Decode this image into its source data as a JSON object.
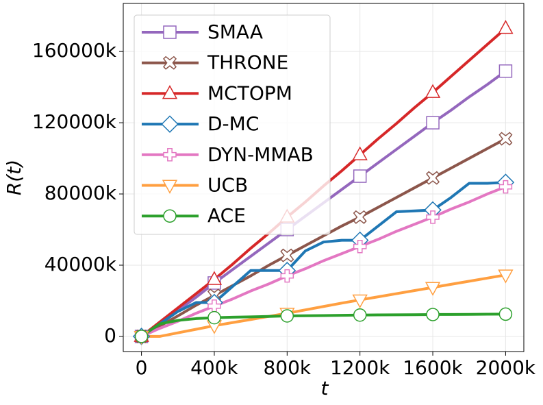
{
  "chart_data": {
    "type": "line",
    "xlabel": "t",
    "ylabel": "R(t)",
    "x": [
      0,
      100000,
      200000,
      300000,
      400000,
      500000,
      600000,
      700000,
      800000,
      900000,
      1000000,
      1100000,
      1200000,
      1300000,
      1400000,
      1500000,
      1600000,
      1700000,
      1800000,
      1900000,
      2000000
    ],
    "series": [
      {
        "name": "SMAA",
        "color": "#9467bd",
        "marker": "square",
        "values": [
          0,
          7000000,
          14500000,
          22000000,
          30000000,
          37500000,
          45000000,
          52500000,
          60000000,
          67500000,
          75000000,
          82500000,
          90000000,
          97500000,
          105000000,
          112500000,
          120000000,
          127000000,
          134500000,
          141500000,
          149000000
        ]
      },
      {
        "name": "THRONE",
        "color": "#8c564b",
        "marker": "x",
        "values": [
          0,
          5800000,
          11500000,
          17500000,
          23000000,
          28500000,
          34000000,
          40000000,
          45500000,
          51000000,
          56500000,
          62000000,
          67000000,
          72500000,
          78000000,
          83500000,
          89000000,
          94500000,
          100000000,
          105500000,
          111000000
        ]
      },
      {
        "name": "MCTOPM",
        "color": "#d62728",
        "marker": "triangle-up",
        "values": [
          0,
          8000000,
          16000000,
          24000000,
          32000000,
          40500000,
          49500000,
          58000000,
          67000000,
          75500000,
          84500000,
          93000000,
          102000000,
          111000000,
          119500000,
          128500000,
          137000000,
          146000000,
          155000000,
          164000000,
          173000000
        ]
      },
      {
        "name": "D-MC",
        "color": "#1f77b4",
        "marker": "diamond",
        "values": [
          0,
          7000000,
          14000000,
          19000000,
          19000000,
          28000000,
          37000000,
          37000000,
          37000000,
          48000000,
          53000000,
          54000000,
          54000000,
          62000000,
          70000000,
          70500000,
          71000000,
          78000000,
          86000000,
          86000000,
          86500000
        ]
      },
      {
        "name": "DYN-MMAB",
        "color": "#e377c2",
        "marker": "plus",
        "values": [
          0,
          4500000,
          8500000,
          13000000,
          17000000,
          21000000,
          25500000,
          29500000,
          34000000,
          38000000,
          42500000,
          46500000,
          50500000,
          54500000,
          59000000,
          63000000,
          67000000,
          71500000,
          75500000,
          80000000,
          84000000
        ]
      },
      {
        "name": "UCB",
        "color": "#ff9f40",
        "marker": "triangle-down",
        "values": [
          0,
          0,
          2000000,
          4000000,
          6000000,
          7750000,
          9500000,
          11250000,
          13000000,
          14900000,
          16800000,
          18700000,
          20500000,
          22250000,
          24000000,
          25750000,
          27500000,
          29250000,
          31000000,
          32750000,
          34500000
        ]
      },
      {
        "name": "ACE",
        "color": "#2ca02c",
        "marker": "circle",
        "values": [
          0,
          7000000,
          9000000,
          10000000,
          10500000,
          10800000,
          11000000,
          11200000,
          11500000,
          11600000,
          11700000,
          11850000,
          12000000,
          12100000,
          12150000,
          12200000,
          12300000,
          12350000,
          12400000,
          12450000,
          12500000
        ]
      }
    ],
    "xlim": [
      -100000,
      2100000
    ],
    "xticks": [
      0,
      {
        "value": 400000,
        "label": "400k"
      },
      {
        "value": 800000,
        "label": "800k"
      },
      {
        "value": 1200000,
        "label": "1200k"
      },
      {
        "value": 1600000,
        "label": "1600k"
      },
      {
        "value": 2000000,
        "label": "2000k"
      }
    ],
    "ylim": [
      -8500000,
      187000000
    ],
    "yticks": [
      0,
      {
        "value": 40000000,
        "label": "40000k"
      },
      {
        "value": 80000000,
        "label": "80000k"
      },
      {
        "value": 120000000,
        "label": "120000k"
      },
      {
        "value": 160000000,
        "label": "160000k"
      }
    ],
    "grid": true,
    "legend": "upper left"
  }
}
